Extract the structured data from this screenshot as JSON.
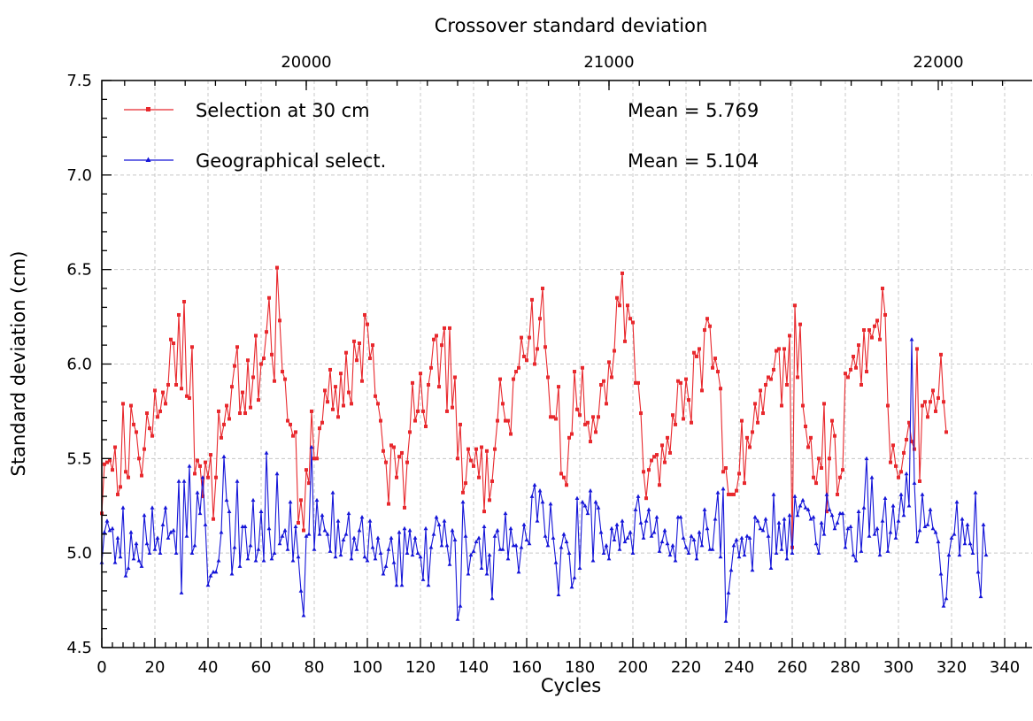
{
  "chart_data": {
    "type": "line",
    "title": "Crossover standard deviation",
    "xlabel": "Cycles",
    "ylabel": "Standard deviation (cm)",
    "xlim": [
      0,
      350
    ],
    "ylim": [
      4.5,
      7.5
    ],
    "x_ticks": [
      0,
      20,
      40,
      60,
      80,
      100,
      120,
      140,
      160,
      180,
      200,
      220,
      240,
      260,
      280,
      300,
      320,
      340
    ],
    "y_ticks": [
      "4.5",
      "5.0",
      "5.5",
      "6.0",
      "6.5",
      "7.0",
      "7.5"
    ],
    "top_axis": {
      "ticks": [
        {
          "label": "20000",
          "x": 77
        },
        {
          "label": "21000",
          "x": 191
        },
        {
          "label": "22000",
          "x": 315
        }
      ]
    },
    "grid": true,
    "legend_position": "top-left",
    "series": [
      {
        "name": "Selection at 30 cm",
        "color": "#e8282d",
        "marker": "square",
        "annotation": "Mean = 5.769",
        "values": [
          5.21,
          5.47,
          5.48,
          5.49,
          5.44,
          5.56,
          5.31,
          5.35,
          5.79,
          5.43,
          5.4,
          5.78,
          5.68,
          5.64,
          5.5,
          5.41,
          5.55,
          5.74,
          5.66,
          5.62,
          5.86,
          5.72,
          5.75,
          5.85,
          5.79,
          5.89,
          6.13,
          6.11,
          5.89,
          6.26,
          5.87,
          6.33,
          5.83,
          5.82,
          6.09,
          5.42,
          5.49,
          5.46,
          5.3,
          5.48,
          5.4,
          5.52,
          5.18,
          5.4,
          5.75,
          5.61,
          5.68,
          5.78,
          5.71,
          5.88,
          5.99,
          6.09,
          5.74,
          5.85,
          5.74,
          6.02,
          5.77,
          5.93,
          6.15,
          5.81,
          6.0,
          6.03,
          6.17,
          6.35,
          6.05,
          5.91,
          6.51,
          6.23,
          5.96,
          5.92,
          5.7,
          5.68,
          5.62,
          5.64,
          5.16,
          5.28,
          5.12,
          5.44,
          5.37,
          5.75,
          5.5,
          5.5,
          5.66,
          5.69,
          5.86,
          5.8,
          5.97,
          5.76,
          5.88,
          5.72,
          5.95,
          5.78,
          6.06,
          5.85,
          5.79,
          6.12,
          6.02,
          6.11,
          5.91,
          6.26,
          6.21,
          6.03,
          6.1,
          5.83,
          5.79,
          5.7,
          5.54,
          5.48,
          5.26,
          5.57,
          5.56,
          5.4,
          5.51,
          5.53,
          5.24,
          5.48,
          5.64,
          5.9,
          5.7,
          5.75,
          5.95,
          5.75,
          5.67,
          5.89,
          5.98,
          6.13,
          6.15,
          5.88,
          6.1,
          6.19,
          5.75,
          6.19,
          5.77,
          5.93,
          5.5,
          5.68,
          5.32,
          5.37,
          5.55,
          5.49,
          5.46,
          5.55,
          5.4,
          5.56,
          5.22,
          5.54,
          5.28,
          5.38,
          5.55,
          5.7,
          5.92,
          5.79,
          5.7,
          5.7,
          5.63,
          5.92,
          5.96,
          5.98,
          6.14,
          6.04,
          6.02,
          6.14,
          6.34,
          6.0,
          6.08,
          6.24,
          6.4,
          6.09,
          5.93,
          5.72,
          5.72,
          5.71,
          5.88,
          5.42,
          5.4,
          5.36,
          5.61,
          5.63,
          5.96,
          5.76,
          5.73,
          5.98,
          5.68,
          5.69,
          5.59,
          5.72,
          5.64,
          5.72,
          5.89,
          5.91,
          5.79,
          6.01,
          5.93,
          6.07,
          6.35,
          6.31,
          6.48,
          6.12,
          6.31,
          6.24,
          6.22,
          5.9,
          5.9,
          5.74,
          5.43,
          5.29,
          5.44,
          5.49,
          5.51,
          5.52,
          5.36,
          5.57,
          5.48,
          5.61,
          5.53,
          5.73,
          5.68,
          5.91,
          5.9,
          5.71,
          5.92,
          5.81,
          5.69,
          6.06,
          6.04,
          6.08,
          5.86,
          6.18,
          6.24,
          6.2,
          5.98,
          6.03,
          5.96,
          5.87,
          5.43,
          5.45,
          5.31,
          5.31,
          5.31,
          5.33,
          5.42,
          5.7,
          5.37,
          5.61,
          5.56,
          5.64,
          5.79,
          5.69,
          5.86,
          5.74,
          5.89,
          5.93,
          5.92,
          5.97,
          6.07,
          6.08,
          5.78,
          6.08,
          5.89,
          6.15,
          5.03,
          6.31,
          5.93,
          6.21,
          5.78,
          5.67,
          5.56,
          5.61,
          5.4,
          5.37,
          5.5,
          5.45,
          5.79,
          5.22,
          5.5,
          5.7,
          5.62,
          5.31,
          5.4,
          5.44,
          5.95,
          5.93,
          5.97,
          6.04,
          5.98,
          6.1,
          5.89,
          6.18,
          5.96,
          6.18,
          6.14,
          6.2,
          6.23,
          6.13,
          6.4,
          6.26,
          5.78,
          5.48,
          5.57,
          5.46,
          5.4,
          5.43,
          5.53,
          5.6,
          5.69,
          5.59,
          5.55,
          6.08,
          5.38,
          5.78,
          5.8,
          5.72,
          5.8,
          5.86,
          5.75,
          5.82,
          6.05,
          5.8,
          5.64
        ]
      },
      {
        "name": "Geographical select.",
        "color": "#1515d8",
        "marker": "triangle",
        "annotation": "Mean = 5.104",
        "values": [
          4.95,
          5.11,
          5.17,
          5.12,
          5.13,
          4.95,
          5.08,
          4.98,
          5.24,
          4.88,
          4.92,
          5.11,
          4.97,
          5.05,
          4.96,
          4.93,
          5.2,
          5.05,
          5.0,
          5.24,
          5.02,
          5.08,
          5.0,
          5.15,
          5.24,
          5.08,
          5.11,
          5.12,
          5.0,
          5.38,
          4.79,
          5.38,
          5.09,
          5.46,
          5.0,
          5.04,
          5.32,
          5.21,
          5.4,
          5.15,
          4.83,
          4.88,
          4.9,
          4.9,
          4.96,
          5.11,
          5.51,
          5.28,
          5.22,
          4.89,
          5.03,
          5.38,
          4.93,
          5.14,
          5.14,
          4.97,
          5.04,
          5.28,
          4.96,
          5.02,
          5.22,
          4.96,
          5.53,
          5.13,
          4.97,
          5.0,
          5.42,
          5.05,
          5.09,
          5.12,
          5.02,
          5.27,
          4.96,
          5.14,
          4.98,
          4.8,
          4.67,
          5.09,
          5.1,
          5.56,
          5.02,
          5.28,
          5.1,
          5.2,
          5.12,
          5.1,
          5.01,
          5.32,
          4.98,
          5.17,
          4.99,
          5.07,
          5.1,
          5.21,
          4.97,
          5.08,
          5.02,
          5.12,
          5.19,
          4.98,
          4.96,
          5.17,
          5.03,
          4.97,
          5.08,
          5.0,
          4.89,
          4.93,
          5.02,
          5.08,
          4.95,
          4.83,
          5.11,
          4.83,
          5.13,
          5.0,
          5.12,
          4.99,
          5.08,
          5.0,
          4.98,
          4.86,
          5.13,
          4.83,
          5.03,
          5.1,
          5.19,
          5.15,
          5.04,
          5.17,
          5.04,
          4.94,
          5.12,
          5.07,
          4.65,
          4.72,
          5.27,
          5.09,
          4.89,
          4.99,
          5.01,
          5.06,
          5.08,
          4.92,
          5.14,
          4.89,
          4.99,
          4.76,
          5.09,
          5.12,
          5.02,
          5.02,
          5.21,
          4.97,
          5.13,
          5.04,
          5.04,
          4.9,
          5.03,
          5.15,
          5.07,
          5.05,
          5.3,
          5.36,
          5.17,
          5.33,
          5.27,
          5.09,
          5.04,
          5.26,
          5.08,
          4.95,
          4.78,
          5.03,
          5.1,
          5.06,
          5.0,
          4.82,
          4.87,
          5.29,
          4.92,
          5.27,
          5.25,
          5.21,
          5.33,
          4.96,
          5.27,
          5.24,
          5.11,
          5.0,
          5.04,
          4.97,
          5.13,
          5.07,
          5.15,
          5.02,
          5.17,
          5.06,
          5.08,
          5.11,
          5.0,
          5.23,
          5.3,
          5.16,
          5.08,
          5.17,
          5.23,
          5.09,
          5.11,
          5.19,
          5.01,
          5.06,
          5.12,
          5.05,
          4.99,
          5.04,
          4.96,
          5.19,
          5.19,
          5.08,
          5.03,
          5.0,
          5.09,
          5.07,
          4.97,
          5.11,
          5.04,
          5.23,
          5.13,
          5.02,
          5.02,
          5.18,
          5.32,
          4.98,
          5.34,
          4.64,
          4.79,
          4.91,
          5.04,
          5.07,
          4.98,
          5.08,
          4.99,
          5.09,
          5.08,
          4.91,
          5.19,
          5.17,
          5.13,
          5.12,
          5.18,
          5.09,
          4.92,
          5.31,
          5.0,
          5.16,
          5.02,
          5.18,
          4.97,
          5.2,
          5.0,
          5.3,
          5.2,
          5.25,
          5.28,
          5.24,
          5.23,
          5.18,
          5.19,
          5.05,
          5.0,
          5.16,
          5.1,
          5.31,
          5.23,
          5.2,
          5.13,
          5.16,
          5.21,
          5.21,
          5.03,
          5.13,
          5.14,
          4.99,
          4.96,
          5.22,
          5.01,
          5.24,
          5.5,
          5.09,
          5.4,
          5.1,
          5.13,
          4.99,
          5.17,
          5.29,
          5.01,
          5.11,
          5.25,
          5.08,
          5.17,
          5.31,
          5.2,
          5.42,
          5.25,
          6.13,
          5.37,
          5.06,
          5.12,
          5.31,
          5.14,
          5.15,
          5.23,
          5.13,
          5.11,
          5.06,
          4.89,
          4.72,
          4.76,
          4.99,
          5.08,
          5.1,
          5.27,
          4.99,
          5.18,
          5.05,
          5.15,
          5.05,
          5.0,
          5.32,
          4.9,
          4.77,
          5.15,
          4.99
        ]
      }
    ]
  }
}
